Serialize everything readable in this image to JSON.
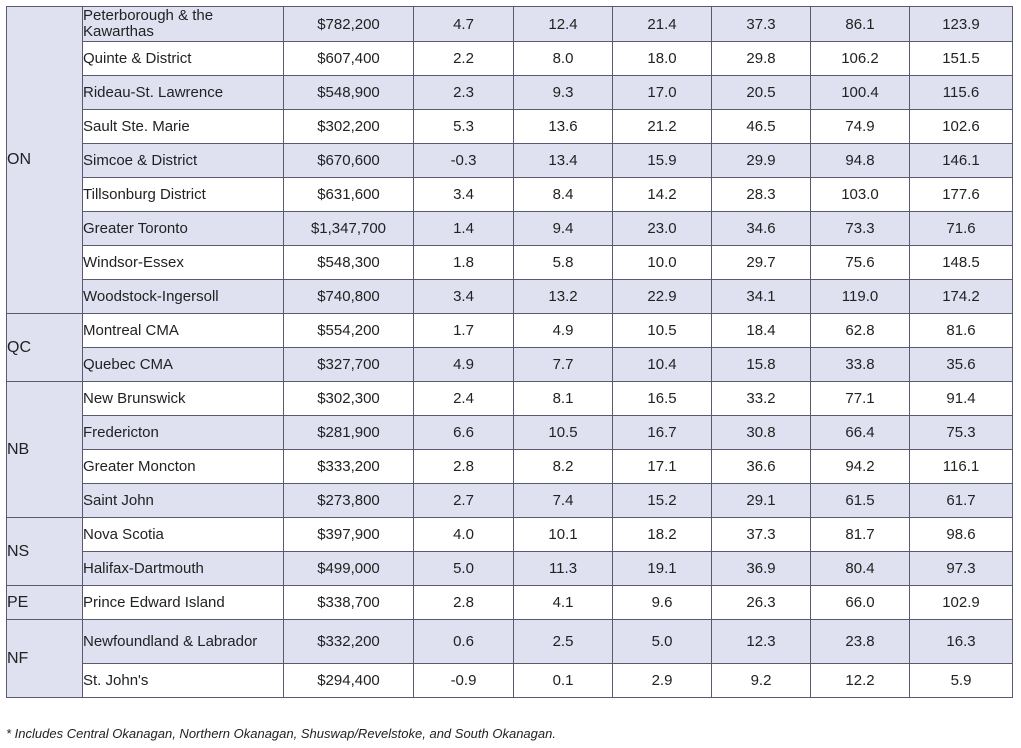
{
  "provinces": {
    "ON": "ON",
    "QC": "QC",
    "NB": "NB",
    "NS": "NS",
    "PE": "PE",
    "NF": "NF"
  },
  "rows": [
    {
      "name": "Peterborough & the Kawarthas",
      "price": "$782,200",
      "v": [
        "4.7",
        "12.4",
        "21.4",
        "37.3",
        "86.1",
        "123.9"
      ]
    },
    {
      "name": "Quinte & District",
      "price": "$607,400",
      "v": [
        "2.2",
        "8.0",
        "18.0",
        "29.8",
        "106.2",
        "151.5"
      ]
    },
    {
      "name": "Rideau-St. Lawrence",
      "price": "$548,900",
      "v": [
        "2.3",
        "9.3",
        "17.0",
        "20.5",
        "100.4",
        "115.6"
      ]
    },
    {
      "name": "Sault Ste. Marie",
      "price": "$302,200",
      "v": [
        "5.3",
        "13.6",
        "21.2",
        "46.5",
        "74.9",
        "102.6"
      ]
    },
    {
      "name": "Simcoe & District",
      "price": "$670,600",
      "v": [
        "-0.3",
        "13.4",
        "15.9",
        "29.9",
        "94.8",
        "146.1"
      ]
    },
    {
      "name": "Tillsonburg District",
      "price": "$631,600",
      "v": [
        "3.4",
        "8.4",
        "14.2",
        "28.3",
        "103.0",
        "177.6"
      ]
    },
    {
      "name": "Greater Toronto",
      "price": "$1,347,700",
      "v": [
        "1.4",
        "9.4",
        "23.0",
        "34.6",
        "73.3",
        "71.6"
      ]
    },
    {
      "name": "Windsor-Essex",
      "price": "$548,300",
      "v": [
        "1.8",
        "5.8",
        "10.0",
        "29.7",
        "75.6",
        "148.5"
      ]
    },
    {
      "name": "Woodstock-Ingersoll",
      "price": "$740,800",
      "v": [
        "3.4",
        "13.2",
        "22.9",
        "34.1",
        "119.0",
        "174.2"
      ]
    },
    {
      "name": "Montreal CMA",
      "price": "$554,200",
      "v": [
        "1.7",
        "4.9",
        "10.5",
        "18.4",
        "62.8",
        "81.6"
      ]
    },
    {
      "name": "Quebec CMA",
      "price": "$327,700",
      "v": [
        "4.9",
        "7.7",
        "10.4",
        "15.8",
        "33.8",
        "35.6"
      ]
    },
    {
      "name": "New Brunswick",
      "price": "$302,300",
      "v": [
        "2.4",
        "8.1",
        "16.5",
        "33.2",
        "77.1",
        "91.4"
      ]
    },
    {
      "name": "Fredericton",
      "price": "$281,900",
      "v": [
        "6.6",
        "10.5",
        "16.7",
        "30.8",
        "66.4",
        "75.3"
      ]
    },
    {
      "name": "Greater Moncton",
      "price": "$333,200",
      "v": [
        "2.8",
        "8.2",
        "17.1",
        "36.6",
        "94.2",
        "116.1"
      ]
    },
    {
      "name": "Saint John",
      "price": "$273,800",
      "v": [
        "2.7",
        "7.4",
        "15.2",
        "29.1",
        "61.5",
        "61.7"
      ]
    },
    {
      "name": "Nova Scotia",
      "price": "$397,900",
      "v": [
        "4.0",
        "10.1",
        "18.2",
        "37.3",
        "81.7",
        "98.6"
      ]
    },
    {
      "name": "Halifax-Dartmouth",
      "price": "$499,000",
      "v": [
        "5.0",
        "11.3",
        "19.1",
        "36.9",
        "80.4",
        "97.3"
      ]
    },
    {
      "name": "Prince Edward Island",
      "price": "$338,700",
      "v": [
        "2.8",
        "4.1",
        "9.6",
        "26.3",
        "66.0",
        "102.9"
      ]
    },
    {
      "name": "Newfoundland & Labrador",
      "price": "$332,200",
      "v": [
        "0.6",
        "2.5",
        "5.0",
        "12.3",
        "23.8",
        "16.3"
      ]
    },
    {
      "name": "St. John's",
      "price": "$294,400",
      "v": [
        "-0.9",
        "0.1",
        "2.9",
        "9.2",
        "12.2",
        "5.9"
      ]
    }
  ],
  "footnote": "* Includes Central Okanagan, Northern Okanagan, Shuswap/Revelstoke, and South Okanagan."
}
